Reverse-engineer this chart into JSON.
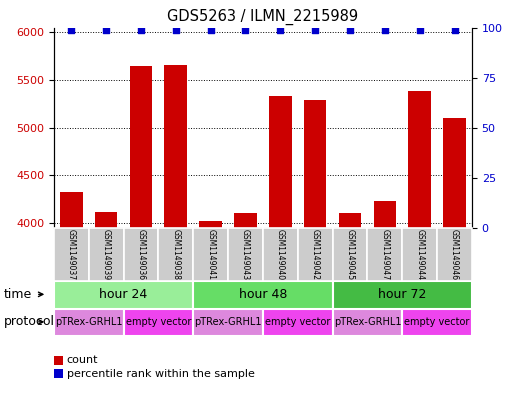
{
  "title": "GDS5263 / ILMN_2215989",
  "samples": [
    "GSM1149037",
    "GSM1149039",
    "GSM1149036",
    "GSM1149038",
    "GSM1149041",
    "GSM1149043",
    "GSM1149040",
    "GSM1149042",
    "GSM1149045",
    "GSM1149047",
    "GSM1149044",
    "GSM1149046"
  ],
  "counts": [
    4330,
    4120,
    5650,
    5660,
    4020,
    4110,
    5330,
    5290,
    4110,
    4230,
    5380,
    5100
  ],
  "percentile_val": 99,
  "bar_color": "#CC0000",
  "dot_color": "#0000CC",
  "ylim_left": [
    3950,
    6050
  ],
  "ylim_right": [
    0,
    100
  ],
  "yticks_left": [
    4000,
    4500,
    5000,
    5500,
    6000
  ],
  "yticks_right": [
    0,
    25,
    50,
    75,
    100
  ],
  "time_groups": [
    {
      "label": "hour 24",
      "start": 0,
      "end": 4,
      "color": "#99EE99"
    },
    {
      "label": "hour 48",
      "start": 4,
      "end": 8,
      "color": "#66DD66"
    },
    {
      "label": "hour 72",
      "start": 8,
      "end": 12,
      "color": "#44BB44"
    }
  ],
  "protocol_groups": [
    {
      "label": "pTRex-GRHL1",
      "start": 0,
      "end": 2,
      "color": "#DD88DD"
    },
    {
      "label": "empty vector",
      "start": 2,
      "end": 4,
      "color": "#EE44EE"
    },
    {
      "label": "pTRex-GRHL1",
      "start": 4,
      "end": 6,
      "color": "#DD88DD"
    },
    {
      "label": "empty vector",
      "start": 6,
      "end": 8,
      "color": "#EE44EE"
    },
    {
      "label": "pTRex-GRHL1",
      "start": 8,
      "end": 10,
      "color": "#DD88DD"
    },
    {
      "label": "empty vector",
      "start": 10,
      "end": 12,
      "color": "#EE44EE"
    }
  ],
  "bg_color": "#FFFFFF",
  "label_color_left": "#CC0000",
  "label_color_right": "#0000CC",
  "sample_box_color": "#CCCCCC",
  "time_label": "time",
  "protocol_label": "protocol",
  "legend_count": "count",
  "legend_percentile": "percentile rank within the sample"
}
